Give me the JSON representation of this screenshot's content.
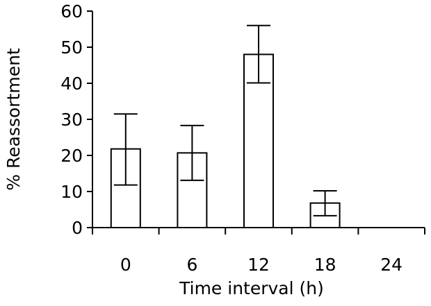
{
  "chart_data": {
    "type": "bar",
    "categories": [
      "0",
      "6",
      "12",
      "18",
      "24"
    ],
    "values": [
      21.8,
      20.7,
      48.0,
      6.8,
      0
    ],
    "error_high": [
      31.5,
      28.3,
      56.0,
      10.2,
      null
    ],
    "error_low": [
      11.8,
      13.1,
      40.1,
      3.3,
      null
    ],
    "title": "",
    "xlabel": "Time interval (h)",
    "ylabel": "% Reassortment",
    "ylim": [
      0,
      60
    ],
    "yticks": [
      "0",
      "10",
      "20",
      "30",
      "40",
      "50",
      "60"
    ],
    "grid": false,
    "legend": "none",
    "bar_color": "#ffffff",
    "edge_color": "#000000"
  }
}
